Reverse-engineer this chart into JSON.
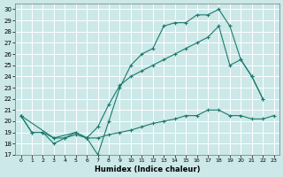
{
  "xlabel": "Humidex (Indice chaleur)",
  "bg_color": "#cce8e8",
  "grid_color": "#ffffff",
  "line_color": "#1a7a6e",
  "xlim": [
    -0.5,
    23.5
  ],
  "ylim": [
    17,
    30.5
  ],
  "xticks": [
    0,
    1,
    2,
    3,
    4,
    5,
    6,
    7,
    8,
    9,
    10,
    11,
    12,
    13,
    14,
    15,
    16,
    17,
    18,
    19,
    20,
    21,
    22,
    23
  ],
  "yticks": [
    17,
    18,
    19,
    20,
    21,
    22,
    23,
    24,
    25,
    26,
    27,
    28,
    29,
    30
  ],
  "series": [
    {
      "x": [
        0,
        1,
        2,
        3,
        4,
        5,
        6,
        7,
        8,
        9,
        10,
        11,
        12,
        13,
        14,
        15,
        16,
        17,
        18,
        19,
        20,
        21,
        22
      ],
      "y": [
        20.5,
        19.0,
        19.0,
        18.0,
        18.5,
        19.0,
        18.5,
        17.0,
        20.0,
        23.0,
        25.0,
        26.0,
        26.5,
        28.5,
        28.8,
        28.8,
        29.5,
        29.5,
        30.0,
        28.5,
        25.5,
        24.0,
        22.0
      ]
    },
    {
      "x": [
        0,
        3,
        5,
        6,
        7,
        8,
        9,
        10,
        11,
        12,
        13,
        14,
        15,
        16,
        17,
        18,
        19,
        20,
        21,
        22
      ],
      "y": [
        20.5,
        18.5,
        19.0,
        18.5,
        19.5,
        21.5,
        23.2,
        24.0,
        24.5,
        25.0,
        25.5,
        26.0,
        26.5,
        27.0,
        27.5,
        28.5,
        25.0,
        25.5,
        24.0,
        22.0
      ]
    },
    {
      "x": [
        0,
        1,
        2,
        3,
        4,
        5,
        6,
        7,
        8,
        9,
        10,
        11,
        12,
        13,
        14,
        15,
        16,
        17,
        18,
        19,
        20,
        21,
        22,
        23
      ],
      "y": [
        20.5,
        19.0,
        19.0,
        18.5,
        18.5,
        18.8,
        18.5,
        18.5,
        18.8,
        19.0,
        19.2,
        19.5,
        19.8,
        20.0,
        20.2,
        20.5,
        20.5,
        21.0,
        21.0,
        20.5,
        20.5,
        20.2,
        20.2,
        20.5
      ]
    }
  ]
}
